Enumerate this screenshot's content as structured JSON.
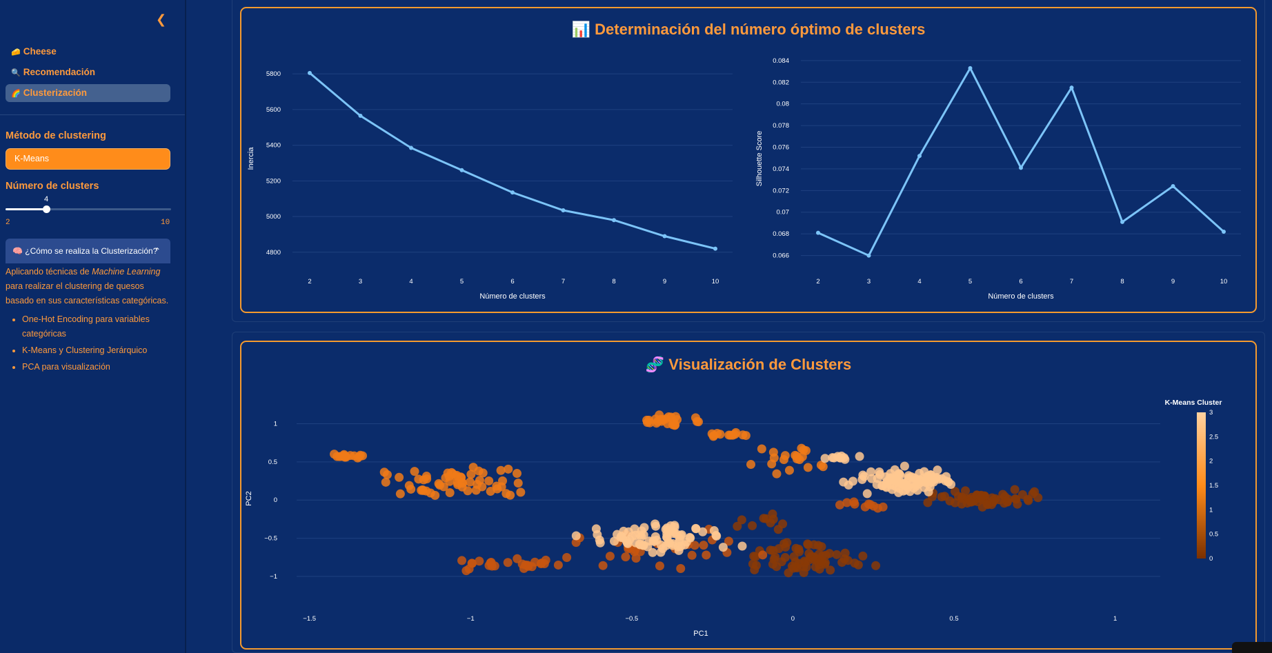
{
  "sidebar": {
    "collapse_icon": "chevron-left-icon",
    "nav": [
      {
        "icon": "🧀",
        "label": "Cheese",
        "active": false
      },
      {
        "icon": "🔍",
        "label": "Recomendación",
        "active": false
      },
      {
        "icon": "🌈",
        "label": "Clusterización",
        "active": true
      }
    ],
    "method_label": "Método de clustering",
    "method_value": "K-Means",
    "clusters_label": "Número de clusters",
    "slider": {
      "value": "4",
      "min": "2",
      "max": "10",
      "fraction": 0.25
    },
    "expander": {
      "icon": "🧠",
      "title": "¿Cómo se realiza la Clusterización?",
      "intro_1": "Aplicando técnicas de ",
      "intro_em": "Machine Learning",
      "intro_2": " para realizar el clustering de quesos basado en sus características categóricas.",
      "bullets": [
        "One-Hot Encoding para variables categóricas",
        "K-Means y Clustering Jerárquico",
        "PCA para visualización"
      ]
    }
  },
  "card1": {
    "icon": "📊",
    "title": "Determinación del número óptimo de clusters"
  },
  "card2": {
    "icon": "🧬",
    "title": "Visualización de Clusters"
  },
  "chart_data": [
    {
      "type": "line",
      "x": [
        2,
        3,
        4,
        5,
        6,
        7,
        8,
        9,
        10
      ],
      "y": [
        5805,
        5565,
        5385,
        5260,
        5135,
        5035,
        4980,
        4890,
        4820
      ],
      "xlabel": "Número de clusters",
      "ylabel": "Inercia",
      "yticks": [
        "4800",
        "5000",
        "5200",
        "5400",
        "5600",
        "5800"
      ],
      "ylim": [
        4745,
        5905
      ],
      "color": "#7cc4f8"
    },
    {
      "type": "line",
      "x": [
        2,
        3,
        4,
        5,
        6,
        7,
        8,
        9,
        10
      ],
      "y": [
        0.0681,
        0.066,
        0.0752,
        0.0833,
        0.0741,
        0.0815,
        0.0691,
        0.0724,
        0.0682
      ],
      "xlabel": "Número de clusters",
      "ylabel": "Silhouette Score",
      "yticks": [
        "0.066",
        "0.068",
        "0.07",
        "0.072",
        "0.074",
        "0.076",
        "0.078",
        "0.08",
        "0.082",
        "0.084"
      ],
      "ylim": [
        0.0654,
        0.0845
      ],
      "color": "#7cc4f8"
    },
    {
      "type": "scatter",
      "xlabel": "PC1",
      "ylabel": "PC2",
      "xticks": [
        "−1.5",
        "−1",
        "−0.5",
        "0",
        "0.5",
        "1"
      ],
      "yticks": [
        "−1",
        "−0.5",
        "0",
        "0.5",
        "1"
      ],
      "xlim": [
        -1.54,
        1.14
      ],
      "ylim": [
        -1.38,
        1.42
      ],
      "colorbar": {
        "title": "K-Means Cluster",
        "ticks": [
          "0",
          "0.5",
          "1",
          "1.5",
          "2",
          "2.5",
          "3"
        ],
        "colors": [
          "#7a3000",
          "#ff8c1a",
          "#ffd2a0"
        ]
      },
      "clusters": [
        {
          "label": 0,
          "color": "#8a3a06",
          "groups": [
            [
              0.62,
              0.02,
              0.26,
              0.14,
              60
            ],
            [
              0.05,
              -0.75,
              0.26,
              0.28,
              70
            ],
            [
              -0.1,
              -0.3,
              0.15,
              0.15,
              10
            ]
          ]
        },
        {
          "label": 1,
          "color": "#c8560f",
          "groups": [
            [
              -0.85,
              -0.85,
              0.22,
              0.12,
              25
            ],
            [
              -0.4,
              -0.65,
              0.4,
              0.35,
              30
            ],
            [
              0.22,
              -0.05,
              0.12,
              0.08,
              10
            ]
          ]
        },
        {
          "label": 2,
          "color": "#f07a18",
          "groups": [
            [
              -1.38,
              0.58,
              0.06,
              0.06,
              18
            ],
            [
              -1.05,
              0.25,
              0.3,
              0.3,
              60
            ],
            [
              -0.38,
              1.05,
              0.14,
              0.12,
              25
            ],
            [
              -0.2,
              0.85,
              0.1,
              0.06,
              12
            ],
            [
              0.0,
              0.5,
              0.15,
              0.3,
              20
            ]
          ]
        },
        {
          "label": 3,
          "color": "#ffc890",
          "groups": [
            [
              0.35,
              0.25,
              0.22,
              0.22,
              100
            ],
            [
              -0.4,
              -0.5,
              0.3,
              0.25,
              80
            ],
            [
              0.15,
              0.55,
              0.06,
              0.08,
              10
            ]
          ]
        }
      ]
    }
  ]
}
